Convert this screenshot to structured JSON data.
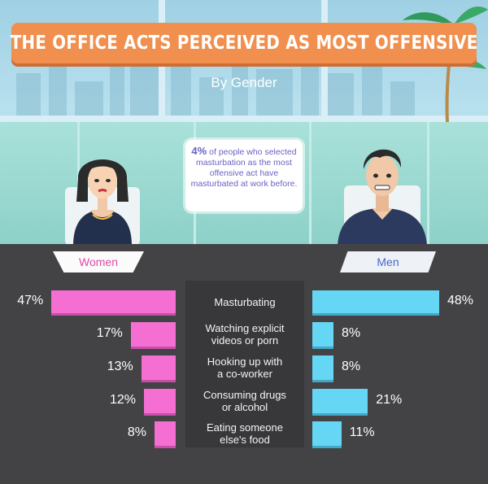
{
  "title": "THE OFFICE ACTS PERCEIVED AS MOST OFFENSIVE",
  "subtitle": "By Gender",
  "callout": {
    "highlight": "4%",
    "text": "of people who selected masturbation as the most offensive act have masturbated at work before."
  },
  "colors": {
    "women": "#f56fd3",
    "men": "#66d6f5",
    "banner": "#f08f4e",
    "panel": "#434244"
  },
  "chart_data": {
    "type": "bar",
    "categories": [
      "Masturbating",
      "Watching explicit videos or porn",
      "Hooking up with a co-worker",
      "Consuming drugs or alcohol",
      "Eating someone else's food"
    ],
    "series": [
      {
        "name": "Women",
        "values": [
          47,
          17,
          13,
          12,
          8
        ],
        "labels": [
          "47%",
          "17%",
          "13%",
          "12%",
          "8%"
        ]
      },
      {
        "name": "Men",
        "values": [
          48,
          8,
          8,
          21,
          11
        ],
        "labels": [
          "48%",
          "8%",
          "8%",
          "21%",
          "11%"
        ]
      }
    ],
    "category_lines": [
      [
        "Masturbating"
      ],
      [
        "Watching explicit",
        "videos or porn"
      ],
      [
        "Hooking up with",
        "a co-worker"
      ],
      [
        "Consuming drugs",
        "or alcohol"
      ],
      [
        "Eating someone",
        "else's food"
      ]
    ],
    "unit": "%"
  }
}
